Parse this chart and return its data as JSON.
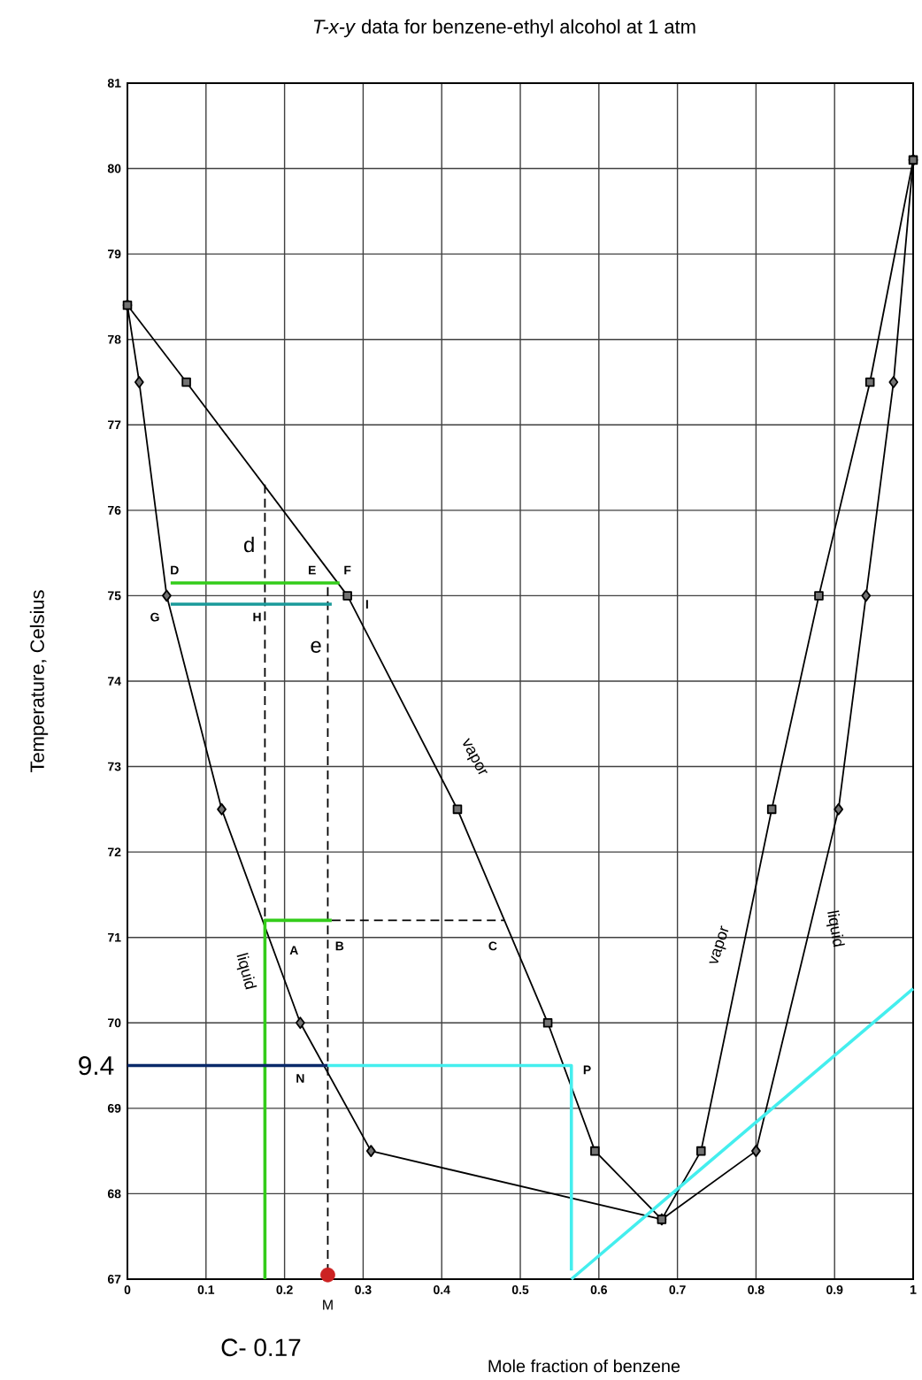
{
  "chart_data": {
    "type": "line",
    "title": "*T-x-y*  data for benzene-ethyl alcohol at 1 atm",
    "xlabel": "Mole fraction of benzene",
    "ylabel": "Temperature, Celsius",
    "xlim": [
      0,
      1
    ],
    "ylim": [
      67,
      81
    ],
    "xticks": [
      0,
      0.1,
      0.2,
      0.3,
      0.4,
      0.5,
      0.6,
      0.7,
      0.8,
      0.9,
      1
    ],
    "yticks": [
      67,
      68,
      69,
      70,
      71,
      72,
      73,
      74,
      75,
      76,
      77,
      78,
      79,
      80,
      81
    ],
    "grid": true,
    "line_style": "solid",
    "series": [
      {
        "color": "#000000",
        "marker": "diamond",
        "x": [
          0,
          0.015,
          0.05,
          0.12,
          0.22,
          0.31,
          0.68,
          0.8,
          0.905,
          0.94,
          0.975,
          1
        ],
        "values": [
          78.4,
          77.5,
          75,
          72.5,
          70,
          68.5,
          67.7,
          68.5,
          72.5,
          75,
          77.5,
          80.1
        ]
      },
      {
        "color": "#000000",
        "marker": "square",
        "x": [
          0,
          0.075,
          0.28,
          0.42,
          0.535,
          0.595,
          0.68,
          0.73,
          0.82,
          0.88,
          0.945,
          1
        ],
        "values": [
          78.4,
          77.5,
          75,
          72.5,
          70,
          68.5,
          67.7,
          68.5,
          72.5,
          75,
          77.5,
          80.1
        ]
      },
      {
        "color": "#000000",
        "marker": "none",
        "line_style": "dashed",
        "x": [
          0.175,
          0.175
        ],
        "values": [
          76.3,
          71.2
        ]
      },
      {
        "color": "#000000",
        "marker": "none",
        "line_style": "dashed",
        "x": [
          0.255,
          0.255
        ],
        "values": [
          75.1,
          67
        ]
      },
      {
        "color": "#000000",
        "marker": "none",
        "line_style": "dashed",
        "x": [
          0.26,
          0.48
        ],
        "values": [
          71.2,
          71.2
        ]
      },
      {
        "color": "#33cc1a",
        "marker": "none",
        "x": [
          0.175,
          0.175,
          0.26
        ],
        "values": [
          67,
          71.2,
          71.2
        ]
      },
      {
        "color": "#33cc1a",
        "marker": "none",
        "x": [
          0.055,
          0.27
        ],
        "values": [
          75.15,
          75.15
        ]
      },
      {
        "color": "#1a9a9a",
        "marker": "none",
        "x": [
          0.055,
          0.26
        ],
        "values": [
          74.9,
          74.9
        ]
      },
      {
        "color": "#0a2a6a",
        "marker": "none",
        "x": [
          0,
          0.255
        ],
        "values": [
          69.5,
          69.5
        ]
      },
      {
        "color": "#44eeee",
        "marker": "none",
        "x": [
          0.255,
          0.565,
          0.565
        ],
        "values": [
          69.5,
          69.5,
          67.1
        ]
      },
      {
        "color": "#44eeee",
        "marker": "none",
        "x": [
          0.565,
          1
        ],
        "values": [
          67,
          70.4
        ]
      },
      {
        "type": "scatter",
        "color": "#cc2222",
        "marker": "circle",
        "x": [
          0.255
        ],
        "values": [
          67.05
        ]
      }
    ],
    "annotations": [
      "D",
      "E",
      "F",
      "G",
      "H",
      "I",
      "A",
      "B",
      "C",
      "N",
      "P",
      "M",
      "liquid",
      "vapor",
      "vapor",
      "liquid",
      "d",
      "e",
      "9.4",
      "C- 0.17"
    ]
  }
}
